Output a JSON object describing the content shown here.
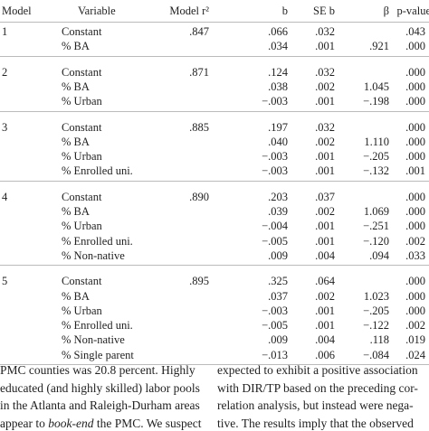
{
  "table": {
    "header": [
      "Model",
      "Variable",
      "Model r²",
      "b",
      "SE b",
      "β",
      "p-value"
    ],
    "groups": [
      {
        "model": "1",
        "r2": ".847",
        "rows": [
          {
            "variable": "Constant",
            "b": ".066",
            "se": ".032",
            "p": ".043"
          },
          {
            "variable": "% BA",
            "b": ".034",
            "se": ".001",
            "beta": ".921",
            "p": ".000"
          }
        ]
      },
      {
        "model": "2",
        "r2": ".871",
        "rows": [
          {
            "variable": "Constant",
            "b": ".124",
            "se": ".032",
            "p": ".000"
          },
          {
            "variable": "% BA",
            "b": ".038",
            "se": ".002",
            "beta": "1.045",
            "p": ".000"
          },
          {
            "variable": "% Urban",
            "b": "−.003",
            "se": ".001",
            "beta": "−.198",
            "p": ".000"
          }
        ]
      },
      {
        "model": "3",
        "r2": ".885",
        "rows": [
          {
            "variable": "Constant",
            "b": ".197",
            "se": ".032",
            "p": ".000"
          },
          {
            "variable": "% BA",
            "b": ".040",
            "se": ".002",
            "beta": "1.110",
            "p": ".000"
          },
          {
            "variable": "% Urban",
            "b": "−.003",
            "se": ".001",
            "beta": "−.205",
            "p": ".000"
          },
          {
            "variable": "% Enrolled uni.",
            "b": "−.003",
            "se": ".001",
            "beta": "−.132",
            "p": ".001"
          }
        ]
      },
      {
        "model": "4",
        "r2": ".890",
        "rows": [
          {
            "variable": "Constant",
            "b": ".203",
            "se": ".037",
            "p": ".000"
          },
          {
            "variable": "% BA",
            "b": ".039",
            "se": ".002",
            "beta": "1.069",
            "p": ".000"
          },
          {
            "variable": "% Urban",
            "b": "−.004",
            "se": ".001",
            "beta": "−.251",
            "p": ".000"
          },
          {
            "variable": "% Enrolled uni.",
            "b": "−.005",
            "se": ".001",
            "beta": "−.120",
            "p": ".002"
          },
          {
            "variable": "% Non-native",
            "b": ".009",
            "se": ".004",
            "beta": ".094",
            "p": ".033"
          }
        ]
      },
      {
        "model": "5",
        "r2": ".895",
        "rows": [
          {
            "variable": "Constant",
            "b": ".325",
            "se": ".064",
            "p": ".000"
          },
          {
            "variable": "% BA",
            "b": ".037",
            "se": ".002",
            "beta": "1.023",
            "p": ".000"
          },
          {
            "variable": "% Urban",
            "b": "−.003",
            "se": ".001",
            "beta": "−.205",
            "p": ".000"
          },
          {
            "variable": "% Enrolled uni.",
            "b": "−.005",
            "se": ".001",
            "beta": "−.122",
            "p": ".002"
          },
          {
            "variable": "% Non-native",
            "b": ".009",
            "se": ".004",
            "beta": ".118",
            "p": ".019"
          },
          {
            "variable": "% Single parent",
            "b": "−.013",
            "se": ".006",
            "beta": "−.084",
            "p": ".024"
          }
        ]
      }
    ]
  },
  "body": {
    "left": [
      [
        "PMC counties was 20.8 percent. Highly"
      ],
      [
        "educated (and highly skilled) labor pools"
      ],
      [
        "in the Atlanta and Raleigh-Durham areas"
      ],
      [
        "appear to ",
        "book-end",
        " the PMC. We suspect"
      ]
    ],
    "right": [
      [
        "expected to exhibit a positive association"
      ],
      [
        "with DIR/TP based on the preceding cor-"
      ],
      [
        "relation analysis, but instead were nega-"
      ],
      [
        "tive. The results imply that the observed"
      ]
    ]
  }
}
